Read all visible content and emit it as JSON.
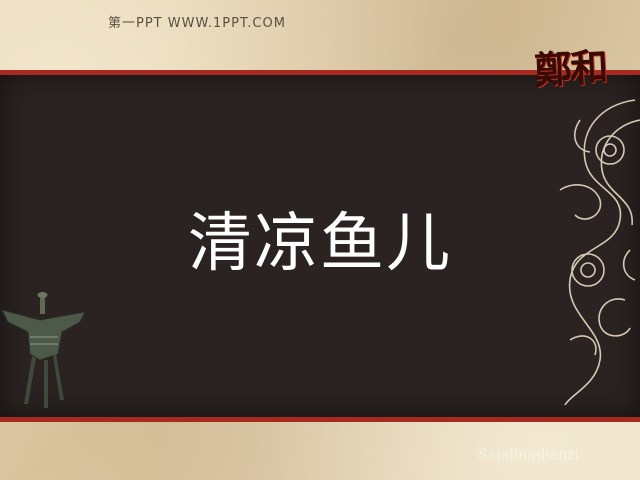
{
  "header": {
    "site_text": "第一PPT    WWW.1PPT.COM"
  },
  "logo": {
    "text": "鄭和"
  },
  "slide": {
    "title": "清凉鱼儿"
  },
  "watermark": {
    "text": "Sandingdianzi"
  },
  "colors": {
    "accent_red": "#a52a1f",
    "board": "#2a2321",
    "paper": "#e3d3b3",
    "title_text": "#ffffff"
  },
  "icons": [
    "bronze-vessel-icon",
    "dragon-ornament-icon"
  ]
}
